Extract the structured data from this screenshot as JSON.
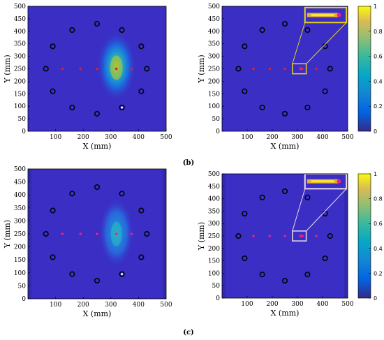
{
  "figure": {
    "captions": [
      "(b)",
      "(c)"
    ]
  },
  "chart_data": [
    {
      "id": "top-left",
      "type": "heatmap",
      "xlabel": "X (mm)",
      "ylabel": "Y (mm)",
      "xlim": [
        0,
        500
      ],
      "ylim": [
        0,
        500
      ],
      "xticks": [
        100,
        200,
        300,
        400,
        500
      ],
      "yticks": [
        0,
        50,
        100,
        150,
        200,
        250,
        300,
        350,
        400,
        450,
        500
      ],
      "colormap": "parula",
      "background": "#3a2ec4",
      "hotspot": {
        "x": 320,
        "y": 260,
        "rx": 45,
        "ry": 140,
        "peak": 0.8
      },
      "sensors": [
        [
          65,
          250
        ],
        [
          90,
          160
        ],
        [
          90,
          340
        ],
        [
          160,
          95
        ],
        [
          160,
          405
        ],
        [
          250,
          430
        ],
        [
          250,
          70
        ],
        [
          340,
          405
        ],
        [
          340,
          95
        ],
        [
          410,
          340
        ],
        [
          410,
          160
        ],
        [
          430,
          250
        ]
      ],
      "red_points": [
        [
          125,
          250
        ],
        [
          190,
          250
        ],
        [
          250,
          250
        ],
        [
          320,
          250
        ],
        [
          375,
          250
        ]
      ],
      "inset": null
    },
    {
      "id": "top-right",
      "type": "heatmap",
      "xlabel": "X (mm)",
      "ylabel": "Y (mm)",
      "xlim": [
        0,
        500
      ],
      "ylim": [
        0,
        500
      ],
      "xticks": [
        100,
        200,
        300,
        400,
        500
      ],
      "yticks": [
        0,
        50,
        100,
        150,
        200,
        250,
        300,
        350,
        400,
        450,
        500
      ],
      "colormap": "parula",
      "background": "#3a2ec4",
      "hotspot": null,
      "sensors": [
        [
          65,
          250
        ],
        [
          90,
          160
        ],
        [
          90,
          340
        ],
        [
          160,
          95
        ],
        [
          160,
          405
        ],
        [
          250,
          430
        ],
        [
          250,
          70
        ],
        [
          340,
          405
        ],
        [
          340,
          95
        ],
        [
          410,
          340
        ],
        [
          410,
          160
        ],
        [
          430,
          250
        ]
      ],
      "red_points": [
        [
          125,
          250
        ],
        [
          190,
          250
        ],
        [
          250,
          250
        ],
        [
          320,
          250
        ],
        [
          375,
          250
        ]
      ],
      "inset": {
        "box_color": "#e8d21a",
        "src": [
          280,
          230,
          335,
          270
        ],
        "dst": [
          330,
          435,
          495,
          495
        ]
      },
      "colorbar": {
        "ticks": [
          0,
          0.2,
          0.4,
          0.6,
          0.8,
          1
        ],
        "range": [
          0,
          1
        ]
      }
    },
    {
      "id": "bottom-left",
      "type": "heatmap",
      "xlabel": "X (mm)",
      "ylabel": "Y (mm)",
      "xlim": [
        0,
        500
      ],
      "ylim": [
        0,
        500
      ],
      "xticks": [
        100,
        200,
        300,
        400,
        500
      ],
      "yticks": [
        0,
        50,
        100,
        150,
        200,
        250,
        300,
        350,
        400,
        450,
        500
      ],
      "colormap": "parula",
      "background": "#3a2ec4",
      "hotspot": {
        "x": 320,
        "y": 255,
        "rx": 40,
        "ry": 135,
        "peak": 0.5
      },
      "sensors": [
        [
          65,
          250
        ],
        [
          90,
          160
        ],
        [
          90,
          340
        ],
        [
          160,
          95
        ],
        [
          160,
          405
        ],
        [
          250,
          430
        ],
        [
          250,
          70
        ],
        [
          340,
          405
        ],
        [
          340,
          95
        ],
        [
          410,
          340
        ],
        [
          410,
          160
        ],
        [
          430,
          250
        ]
      ],
      "red_points": [
        [
          125,
          250
        ],
        [
          190,
          250
        ],
        [
          250,
          250
        ],
        [
          320,
          250
        ],
        [
          375,
          250
        ]
      ],
      "inset": null
    },
    {
      "id": "bottom-right",
      "type": "heatmap",
      "xlabel": "X (mm)",
      "ylabel": "Y (mm)",
      "xlim": [
        0,
        500
      ],
      "ylim": [
        0,
        500
      ],
      "xticks": [
        100,
        200,
        300,
        400,
        500
      ],
      "yticks": [
        0,
        50,
        100,
        150,
        200,
        250,
        300,
        350,
        400,
        450,
        500
      ],
      "colormap": "parula",
      "background": "#3a2ec4",
      "hotspot": null,
      "sensors": [
        [
          65,
          250
        ],
        [
          90,
          160
        ],
        [
          90,
          340
        ],
        [
          160,
          95
        ],
        [
          160,
          405
        ],
        [
          250,
          430
        ],
        [
          250,
          70
        ],
        [
          340,
          405
        ],
        [
          340,
          95
        ],
        [
          410,
          340
        ],
        [
          410,
          160
        ],
        [
          430,
          250
        ]
      ],
      "red_points": [
        [
          125,
          250
        ],
        [
          190,
          250
        ],
        [
          250,
          250
        ],
        [
          320,
          250
        ],
        [
          375,
          250
        ]
      ],
      "inset": {
        "box_color": "#f0d8e8",
        "src": [
          280,
          230,
          335,
          270
        ],
        "dst": [
          330,
          440,
          495,
          500
        ]
      },
      "colorbar": {
        "ticks": [
          0,
          0.2,
          0.4,
          0.6,
          0.8,
          1
        ],
        "range": [
          0,
          1
        ]
      }
    }
  ]
}
